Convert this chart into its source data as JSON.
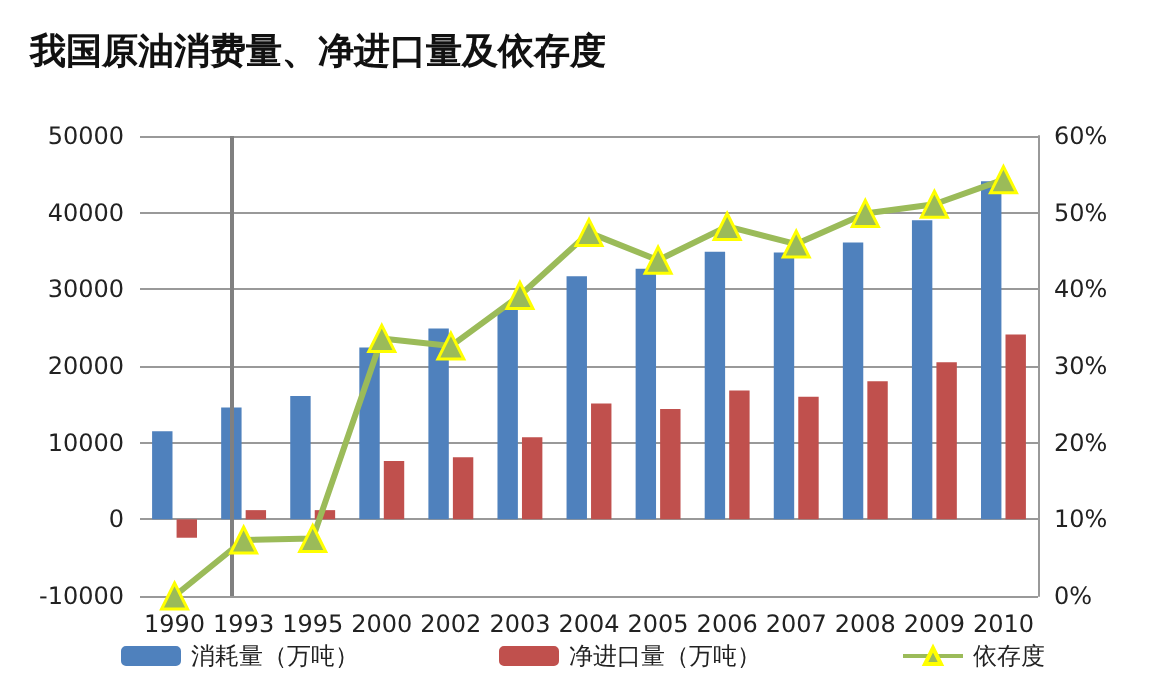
{
  "chart_data": {
    "type": "bar",
    "title": "我国原油消费量、净进口量及依存度",
    "categories": [
      "1990",
      "1993",
      "1995",
      "2000",
      "2002",
      "2003",
      "2004",
      "2005",
      "2006",
      "2007",
      "2008",
      "2009",
      "2010"
    ],
    "series": [
      {
        "name": "消耗量（万吨）",
        "color": "#4f81bd",
        "values": [
          11500,
          14600,
          16100,
          22400,
          24900,
          27300,
          31700,
          32700,
          34900,
          34800,
          36100,
          39000,
          44100
        ]
      },
      {
        "name": "净进口量（万吨）",
        "color": "#c0504d",
        "values": [
          -2400,
          1200,
          1200,
          7600,
          8100,
          10700,
          15100,
          14400,
          16800,
          16000,
          18000,
          20500,
          24100
        ]
      },
      {
        "name": "依存度",
        "type": "line",
        "axis": "y2",
        "color": "#9bbb59",
        "marker": "triangle",
        "values": [
          0,
          7.3,
          7.5,
          33.6,
          32.6,
          39.2,
          47.4,
          43.8,
          48.2,
          45.9,
          49.9,
          51.1,
          54.3
        ]
      }
    ],
    "ylim": [
      -10000,
      50000
    ],
    "yticks": [
      -10000,
      0,
      10000,
      20000,
      30000,
      40000,
      50000
    ],
    "y2lim": [
      0,
      60
    ],
    "y2ticks": [
      {
        "value": 0,
        "label": "0%"
      },
      {
        "value": 10,
        "label": "10%"
      },
      {
        "value": 20,
        "label": "20%"
      },
      {
        "value": 30,
        "label": "30%"
      },
      {
        "value": 40,
        "label": "40%"
      },
      {
        "value": 50,
        "label": "50%"
      },
      {
        "value": 60,
        "label": "60%"
      }
    ],
    "ref_lines": [
      {
        "axis": "x",
        "value": "1993",
        "color": "#808080"
      }
    ],
    "grid": "y",
    "legend": "bottom"
  }
}
